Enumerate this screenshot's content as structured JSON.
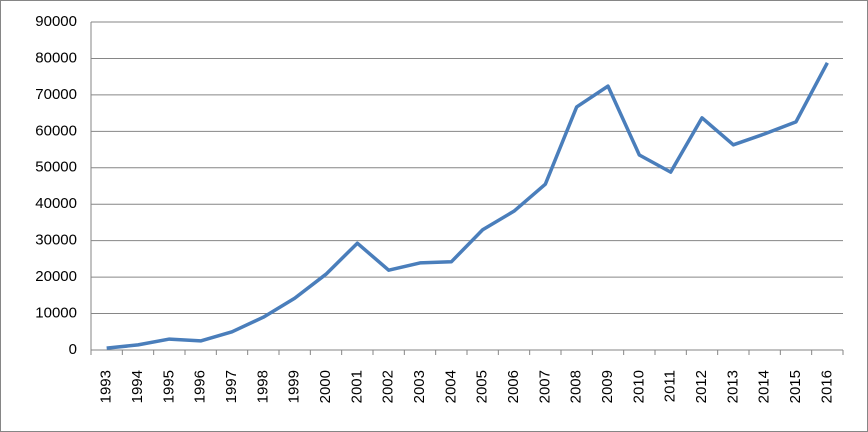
{
  "chart_data": {
    "type": "line",
    "categories": [
      "1993",
      "1994",
      "1995",
      "1996",
      "1997",
      "1998",
      "1999",
      "2000",
      "2001",
      "2002",
      "2003",
      "2004",
      "2005",
      "2006",
      "2007",
      "2008",
      "2009",
      "2010",
      "2011",
      "2012",
      "2013",
      "2014",
      "2015",
      "2016"
    ],
    "values": [
      500,
      1400,
      3000,
      2500,
      5000,
      9000,
      14200,
      20800,
      29300,
      21900,
      23900,
      24200,
      33000,
      38100,
      45500,
      66700,
      72400,
      53500,
      48800,
      63700,
      56300,
      59300,
      62600,
      78800
    ],
    "color": "#4a7ebb",
    "ylim": [
      0,
      90000
    ],
    "yticks": [
      0,
      10000,
      20000,
      30000,
      40000,
      50000,
      60000,
      70000,
      80000,
      90000
    ],
    "grid": true
  }
}
